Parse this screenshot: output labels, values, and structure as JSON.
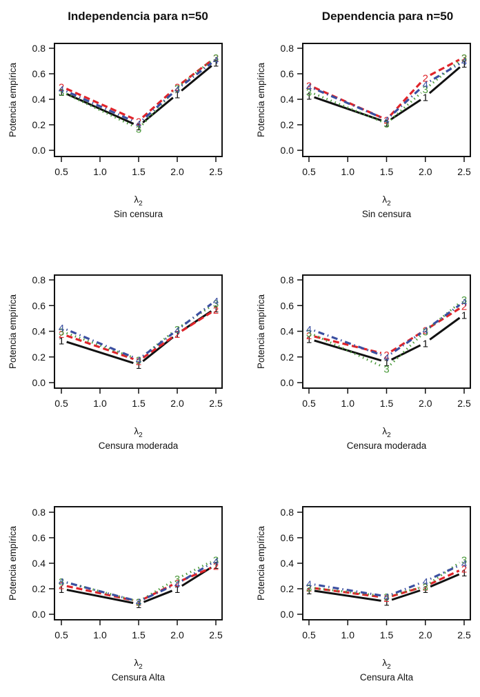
{
  "column_titles": [
    "Independencia para n=50",
    "Dependencia para n=50"
  ],
  "series_styles": [
    {
      "name": "1",
      "color": "#111111",
      "dash": "solid"
    },
    {
      "name": "2",
      "color": "#e0242a",
      "dash": "dashed"
    },
    {
      "name": "3",
      "color": "#4a9a3a",
      "dash": "dotted"
    },
    {
      "name": "4",
      "color": "#3b4fa0",
      "dash": "dotdash"
    }
  ],
  "chart_data": [
    {
      "type": "line",
      "column": "Independencia para n=50",
      "title": "",
      "xlabel": "λ2",
      "subtitle": "Sin censura",
      "ylabel": "Potencia empírica",
      "x": [
        0.5,
        1.5,
        2.0,
        2.5
      ],
      "xticks": [
        "0.5",
        "1.0",
        "1.5",
        "2.0",
        "2.5"
      ],
      "yticks": [
        "0.0",
        "0.2",
        "0.4",
        "0.6",
        "0.8"
      ],
      "xlim": [
        0.5,
        2.5
      ],
      "ylim": [
        0.0,
        0.8
      ],
      "series": [
        {
          "name": "1",
          "values": [
            0.46,
            0.19,
            0.44,
            0.69
          ]
        },
        {
          "name": "2",
          "values": [
            0.5,
            0.23,
            0.5,
            0.73
          ]
        },
        {
          "name": "3",
          "values": [
            0.46,
            0.17,
            0.49,
            0.73
          ]
        },
        {
          "name": "4",
          "values": [
            0.48,
            0.21,
            0.48,
            0.71
          ]
        }
      ]
    },
    {
      "type": "line",
      "column": "Dependencia para n=50",
      "title": "",
      "xlabel": "λ2",
      "subtitle": "Sin censura",
      "ylabel": "Potencia empírica",
      "x": [
        0.5,
        1.5,
        2.0,
        2.5
      ],
      "xticks": [
        "0.5",
        "1.0",
        "1.5",
        "2.0",
        "2.5"
      ],
      "yticks": [
        "0.0",
        "0.2",
        "0.4",
        "0.6",
        "0.8"
      ],
      "xlim": [
        0.5,
        2.5
      ],
      "ylim": [
        0.0,
        0.8
      ],
      "series": [
        {
          "name": "1",
          "values": [
            0.43,
            0.22,
            0.42,
            0.68
          ]
        },
        {
          "name": "2",
          "values": [
            0.51,
            0.24,
            0.57,
            0.73
          ]
        },
        {
          "name": "3",
          "values": [
            0.46,
            0.21,
            0.48,
            0.73
          ]
        },
        {
          "name": "4",
          "values": [
            0.5,
            0.24,
            0.52,
            0.7
          ]
        }
      ]
    },
    {
      "type": "line",
      "column": "Independencia para n=50",
      "title": "",
      "xlabel": "λ2",
      "subtitle": "Censura moderada",
      "ylabel": "Potencia empírica",
      "x": [
        0.5,
        1.5,
        2.0,
        2.5
      ],
      "xticks": [
        "0.5",
        "1.0",
        "1.5",
        "2.0",
        "2.5"
      ],
      "yticks": [
        "0.0",
        "0.2",
        "0.4",
        "0.6",
        "0.8"
      ],
      "xlim": [
        0.5,
        2.5
      ],
      "ylim": [
        0.0,
        0.8
      ],
      "series": [
        {
          "name": "1",
          "values": [
            0.33,
            0.14,
            0.38,
            0.58
          ]
        },
        {
          "name": "2",
          "values": [
            0.38,
            0.17,
            0.38,
            0.57
          ]
        },
        {
          "name": "3",
          "values": [
            0.4,
            0.18,
            0.42,
            0.62
          ]
        },
        {
          "name": "4",
          "values": [
            0.43,
            0.18,
            0.41,
            0.64
          ]
        }
      ]
    },
    {
      "type": "line",
      "column": "Dependencia para n=50",
      "title": "",
      "xlabel": "λ2",
      "subtitle": "Censura moderada",
      "ylabel": "Potencia empírica",
      "x": [
        0.5,
        1.5,
        2.0,
        2.5
      ],
      "xticks": [
        "0.5",
        "1.0",
        "1.5",
        "2.0",
        "2.5"
      ],
      "yticks": [
        "0.0",
        "0.2",
        "0.4",
        "0.6",
        "0.8"
      ],
      "xlim": [
        0.5,
        2.5
      ],
      "ylim": [
        0.0,
        0.8
      ],
      "series": [
        {
          "name": "1",
          "values": [
            0.34,
            0.16,
            0.31,
            0.53
          ]
        },
        {
          "name": "2",
          "values": [
            0.37,
            0.22,
            0.41,
            0.6
          ]
        },
        {
          "name": "3",
          "values": [
            0.39,
            0.11,
            0.4,
            0.65
          ]
        },
        {
          "name": "4",
          "values": [
            0.42,
            0.2,
            0.41,
            0.63
          ]
        }
      ]
    },
    {
      "type": "line",
      "column": "Independencia para n=50",
      "title": "",
      "xlabel": "λ2",
      "subtitle": "Censura Alta",
      "ylabel": "Potencia empírica",
      "x": [
        0.5,
        1.5,
        2.0,
        2.5
      ],
      "xticks": [
        "0.5",
        "1.0",
        "1.5",
        "2.0",
        "2.5"
      ],
      "yticks": [
        "0.0",
        "0.2",
        "0.4",
        "0.6",
        "0.8"
      ],
      "xlim": [
        0.5,
        2.5
      ],
      "ylim": [
        0.0,
        0.8
      ],
      "series": [
        {
          "name": "1",
          "values": [
            0.2,
            0.08,
            0.2,
            0.39
          ]
        },
        {
          "name": "2",
          "values": [
            0.23,
            0.1,
            0.25,
            0.38
          ]
        },
        {
          "name": "3",
          "values": [
            0.26,
            0.1,
            0.28,
            0.43
          ]
        },
        {
          "name": "4",
          "values": [
            0.26,
            0.1,
            0.24,
            0.42
          ]
        }
      ]
    },
    {
      "type": "line",
      "column": "Dependencia para n=50",
      "title": "",
      "xlabel": "λ2",
      "subtitle": "Censura Alta",
      "ylabel": "Potencia empírica",
      "x": [
        0.5,
        1.5,
        2.0,
        2.5
      ],
      "xticks": [
        "0.5",
        "1.0",
        "1.5",
        "2.0",
        "2.5"
      ],
      "yticks": [
        "0.0",
        "0.2",
        "0.4",
        "0.6",
        "0.8"
      ],
      "xlim": [
        0.5,
        2.5
      ],
      "ylim": [
        0.0,
        0.8
      ],
      "series": [
        {
          "name": "1",
          "values": [
            0.19,
            0.1,
            0.2,
            0.33
          ]
        },
        {
          "name": "2",
          "values": [
            0.21,
            0.13,
            0.22,
            0.36
          ]
        },
        {
          "name": "3",
          "values": [
            0.21,
            0.14,
            0.22,
            0.43
          ]
        },
        {
          "name": "4",
          "values": [
            0.24,
            0.14,
            0.26,
            0.4
          ]
        }
      ]
    }
  ]
}
